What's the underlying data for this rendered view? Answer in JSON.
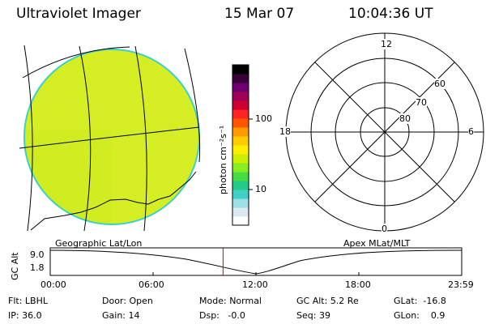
{
  "header": {
    "title": "Ultraviolet Imager",
    "date": "15 Mar 07",
    "time": "10:04:36 UT"
  },
  "colorbar": {
    "unit_label": "photon cm⁻²s⁻¹",
    "ticks": [
      "100",
      "10"
    ],
    "colors": [
      "#ffffff",
      "#dde9f0",
      "#9fe0e6",
      "#3fd0c8",
      "#22cc88",
      "#44dd44",
      "#88ee22",
      "#ccee00",
      "#ffee00",
      "#ffcc00",
      "#ff9900",
      "#ff5500",
      "#ff2222",
      "#cc0033",
      "#a0005a",
      "#700070",
      "#3a003a",
      "#000000"
    ]
  },
  "polar": {
    "mlt_labels": {
      "top": "12",
      "bottom": "0",
      "left": "18",
      "right": "6"
    },
    "lat_labels": [
      "60",
      "70",
      "80"
    ]
  },
  "altitude_plot": {
    "left_label": "Geographic Lat/Lon",
    "right_label": "Apex MLat/MLT",
    "y_axis_label": "GC Alt",
    "y_ticks": [
      "9.0",
      "1.8"
    ],
    "x_ticks": [
      "00:00",
      "06:00",
      "12:00",
      "18:00",
      "23:59"
    ],
    "current_time_marker_hours": 10.08,
    "marker_color": "#cc0000"
  },
  "footer": {
    "row1": [
      {
        "label": "Flt:",
        "value": "LBHL"
      },
      {
        "label": "Door:",
        "value": "Open"
      },
      {
        "label": "Mode:",
        "value": "Normal"
      },
      {
        "label": "GC Alt:",
        "value": "5.2 Re"
      },
      {
        "label": "GLat:",
        "value": "-16.8"
      }
    ],
    "row2": [
      {
        "label": "IP:",
        "value": "36.0"
      },
      {
        "label": "Gain:",
        "value": "14"
      },
      {
        "label": "Dsp:",
        "value": "-0.0"
      },
      {
        "label": "Seq:",
        "value": "39"
      },
      {
        "label": "GLon:",
        "value": "0.9"
      }
    ]
  }
}
